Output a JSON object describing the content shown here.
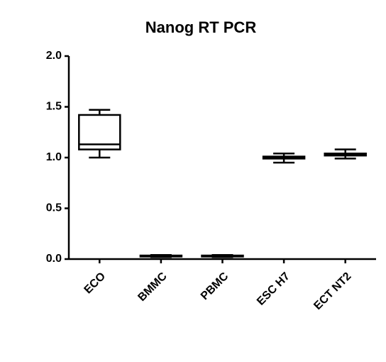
{
  "chart_data": {
    "type": "box",
    "title": "Nanog RT PCR",
    "categories": [
      "ECO",
      "BMMC",
      "PBMC",
      "ESC H7",
      "ECT NT2"
    ],
    "boxes": [
      {
        "min": 1.0,
        "q1": 1.08,
        "median": 1.13,
        "q3": 1.42,
        "max": 1.47
      },
      {
        "min": 0.02,
        "q1": 0.025,
        "median": 0.03,
        "q3": 0.035,
        "max": 0.04
      },
      {
        "min": 0.02,
        "q1": 0.025,
        "median": 0.03,
        "q3": 0.035,
        "max": 0.04
      },
      {
        "min": 0.95,
        "q1": 0.99,
        "median": 1.0,
        "q3": 1.01,
        "max": 1.04
      },
      {
        "min": 0.99,
        "q1": 1.02,
        "median": 1.03,
        "q3": 1.04,
        "max": 1.08
      }
    ],
    "color": "#000000",
    "ylim": [
      0,
      2
    ],
    "yticks": [
      {
        "value": 0,
        "label": "0.0"
      },
      0.5,
      {
        "value": 1,
        "label": "1.0"
      },
      1.5,
      {
        "value": 2,
        "label": "2.0"
      }
    ]
  }
}
